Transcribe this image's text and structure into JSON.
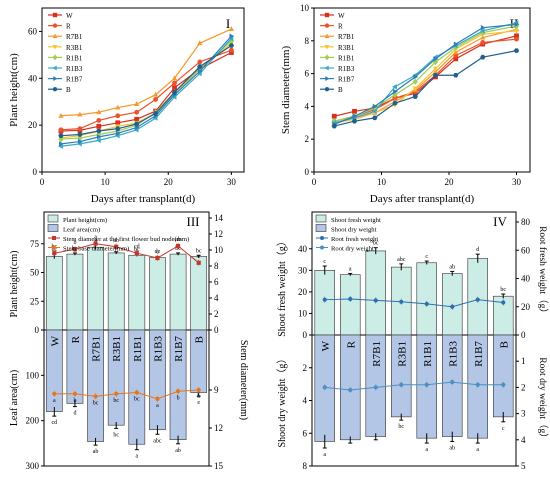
{
  "chart_data": [
    {
      "type": "line",
      "panel_label": "I",
      "title": "",
      "xlabel": "Days after transplant(d)",
      "ylabel": "Plant height(cm)",
      "xlim": [
        0,
        32
      ],
      "ylim": [
        0,
        70
      ],
      "xticks": [
        0,
        10,
        20,
        30
      ],
      "yticks": [
        0,
        20,
        40,
        60
      ],
      "legend_position": "top-left",
      "x": [
        3,
        6,
        9,
        12,
        15,
        18,
        21,
        25,
        30
      ],
      "series": [
        {
          "name": "W",
          "color": "#d7301f",
          "marker": "square",
          "values": [
            17.5,
            17.8,
            19.5,
            21,
            22.5,
            26,
            36,
            44,
            51
          ]
        },
        {
          "name": "R",
          "color": "#e8552a",
          "marker": "circle",
          "values": [
            18,
            18.5,
            22,
            24,
            25.5,
            31,
            38,
            47,
            52
          ]
        },
        {
          "name": "R7B1",
          "color": "#f59a2c",
          "marker": "triangle",
          "values": [
            24,
            24.5,
            25.5,
            27.5,
            29,
            33,
            40,
            55,
            61
          ]
        },
        {
          "name": "R3B1",
          "color": "#f2c43a",
          "marker": "triangle-down",
          "values": [
            14.5,
            15.5,
            17.5,
            19.5,
            21,
            25,
            33,
            44,
            55
          ]
        },
        {
          "name": "R1B1",
          "color": "#9ccf52",
          "marker": "diamond",
          "values": [
            14,
            14.5,
            16,
            17.5,
            20,
            25.5,
            34,
            44,
            56
          ]
        },
        {
          "name": "R1B3",
          "color": "#38a9c8",
          "marker": "triangle-left",
          "values": [
            11,
            12,
            13.5,
            15.5,
            18,
            23,
            32,
            42,
            57
          ]
        },
        {
          "name": "R1B7",
          "color": "#2d7fb8",
          "marker": "triangle-right",
          "values": [
            12,
            13,
            15,
            16.5,
            19,
            24,
            33,
            43,
            58
          ]
        },
        {
          "name": "B",
          "color": "#235f8c",
          "marker": "hexagon",
          "values": [
            15.5,
            16,
            17.5,
            18.5,
            20.5,
            25,
            34,
            45,
            54
          ]
        }
      ]
    },
    {
      "type": "line",
      "panel_label": "II",
      "title": "",
      "xlabel": "Days after transplant(d)",
      "ylabel": "Stem diameter(mm)",
      "xlim": [
        0,
        32
      ],
      "ylim": [
        0,
        10
      ],
      "xticks": [
        0,
        10,
        20,
        30
      ],
      "yticks": [
        0,
        2,
        4,
        6,
        8,
        10
      ],
      "legend_position": "top-left",
      "x": [
        3,
        6,
        9,
        12,
        15,
        18,
        21,
        25,
        30
      ],
      "series": [
        {
          "name": "W",
          "color": "#d7301f",
          "marker": "square",
          "values": [
            3.4,
            3.7,
            3.9,
            4.5,
            4.8,
            5.8,
            6.9,
            7.8,
            8.3
          ]
        },
        {
          "name": "R",
          "color": "#e8552a",
          "marker": "circle",
          "values": [
            3.1,
            3.4,
            3.8,
            4.5,
            4.9,
            5.9,
            7.1,
            7.9,
            8.1
          ]
        },
        {
          "name": "R7B1",
          "color": "#f59a2c",
          "marker": "triangle",
          "values": [
            3.0,
            3.3,
            3.6,
            4.3,
            5.0,
            6.1,
            7.3,
            8.2,
            8.7
          ]
        },
        {
          "name": "R3B1",
          "color": "#f2c43a",
          "marker": "triangle-down",
          "values": [
            3.0,
            3.2,
            3.6,
            4.1,
            5.1,
            6.3,
            7.5,
            8.4,
            8.6
          ]
        },
        {
          "name": "R1B1",
          "color": "#9ccf52",
          "marker": "diamond",
          "values": [
            3.1,
            3.4,
            3.9,
            4.7,
            5.5,
            6.7,
            7.6,
            8.5,
            8.9
          ]
        },
        {
          "name": "R1B3",
          "color": "#38a9c8",
          "marker": "triangle-left",
          "values": [
            3.0,
            3.3,
            3.7,
            5.2,
            5.9,
            7.0,
            7.7,
            8.6,
            9.1
          ]
        },
        {
          "name": "R1B7",
          "color": "#2d7fb8",
          "marker": "triangle-right",
          "values": [
            2.9,
            3.4,
            4.0,
            4.9,
            5.8,
            6.9,
            7.8,
            8.8,
            9.0
          ]
        },
        {
          "name": "B",
          "color": "#235f8c",
          "marker": "hexagon",
          "values": [
            2.8,
            3.1,
            3.3,
            4.2,
            4.6,
            5.9,
            5.9,
            7.0,
            7.4
          ]
        }
      ]
    },
    {
      "type": "bar",
      "panel_label": "III",
      "categories": [
        "W",
        "R",
        "R7B1",
        "R3B1",
        "R1B1",
        "R1B3",
        "R1B7",
        "B"
      ],
      "legend": [
        "Plant height(cm)",
        "Leaf area(cm)",
        "Stem diameter at the first flower bud node(mm)",
        "Stem base diameter(mm)"
      ],
      "legend_position": "top-left",
      "top": {
        "ylabel": "Plant height(cm)",
        "ylim": [
          0,
          80
        ],
        "yticks": [
          0,
          25,
          50,
          75
        ],
        "bar_color": "#ccece6",
        "values": [
          64,
          66,
          72,
          67,
          65,
          63,
          66,
          64
        ],
        "errors": [
          2,
          1,
          2,
          1,
          1,
          1,
          1,
          1
        ],
        "letters": [
          "bc",
          "bc",
          "a",
          "b",
          "bc",
          "c",
          "bc",
          "bc"
        ]
      },
      "bottom": {
        "ylabel": "Leaf area(cm)",
        "ylim": [
          300,
          0
        ],
        "yticks": [
          0,
          100,
          200,
          300
        ],
        "bar_color": "#b3c6e6",
        "values": [
          180,
          162,
          246,
          210,
          252,
          220,
          242,
          138
        ],
        "errors": [
          10,
          7,
          8,
          7,
          12,
          10,
          9,
          8
        ],
        "letters": [
          "cd",
          "d",
          "ab",
          "bc",
          "a",
          "abc",
          "ab",
          "e"
        ]
      },
      "right_axis": {
        "label": "Stem diameter(mm)",
        "top_ticks": [
          0,
          2,
          4,
          6,
          8,
          10,
          12,
          14
        ],
        "bottom_ticks": [
          9,
          12,
          15
        ]
      },
      "lines": [
        {
          "name": "Stem diameter at the first flower bud node(mm)",
          "color": "#c0392b",
          "marker": "square",
          "values": [
            9.6,
            10.1,
            10.8,
            10.4,
            9.6,
            9.0,
            10.5,
            8.4
          ],
          "letters": [
            "bc",
            "b",
            "a",
            "ab",
            "cd",
            "de",
            "ab",
            "e"
          ]
        },
        {
          "name": "Stem base diameter(mm)",
          "color": "#e8741e",
          "marker": "circle",
          "values": [
            10.2,
            10.2,
            10.4,
            10.2,
            10.1,
            10.6,
            10.0,
            9.9
          ],
          "letters": [
            "a",
            "b",
            "bc",
            "bc",
            "bc",
            "a",
            "b",
            "b"
          ]
        }
      ]
    },
    {
      "type": "bar",
      "panel_label": "IV",
      "categories": [
        "W",
        "R",
        "R7B1",
        "R3B1",
        "R1B1",
        "R1B3",
        "R1B7",
        "B"
      ],
      "legend": [
        "Shoot fresh weight",
        "Shoot dry weight",
        "Root fresh weight",
        "Root dry weight"
      ],
      "legend_position": "top-left",
      "top": {
        "ylabel": "Shoot fresh weight（g）",
        "ylim": [
          0,
          45
        ],
        "yticks": [
          0,
          10,
          20,
          30,
          40
        ],
        "bar_color": "#ccece6",
        "values": [
          30,
          28,
          39,
          31.5,
          33.5,
          28.5,
          35.5,
          18
        ],
        "errors": [
          2,
          0.5,
          1.5,
          1.5,
          0.8,
          1,
          2,
          1
        ],
        "letters": [
          "c",
          "a",
          "bc",
          "abc",
          "c",
          "ab",
          "d",
          "bc"
        ]
      },
      "bottom": {
        "ylabel": "Shoot dry weight（g）",
        "ylim": [
          8,
          0
        ],
        "yticks": [
          0,
          2,
          4,
          6,
          8
        ],
        "bar_color": "#b3c6e6",
        "values": [
          6.5,
          6.4,
          6.2,
          5.0,
          6.3,
          6.2,
          6.3,
          5.0
        ],
        "errors": [
          0.4,
          0.2,
          0.2,
          0.2,
          0.3,
          0.3,
          0.3,
          0.3
        ],
        "letters": [
          "a",
          "",
          "",
          "bc",
          "a",
          "ab",
          "a",
          "c"
        ]
      },
      "right_axis": {
        "top_label": "Root fresh weight（g）",
        "bottom_label": "Root dry weight（g）",
        "top_ticks": [
          0,
          20,
          40,
          60,
          80
        ],
        "bottom_ticks": [
          0,
          1,
          2,
          3,
          4,
          5
        ]
      },
      "lines": [
        {
          "name": "Root fresh weight",
          "color": "#2d6fb0",
          "marker": "circle",
          "values": [
            25,
            25.5,
            24.5,
            23.5,
            22,
            20,
            25,
            23
          ]
        },
        {
          "name": "Root dry weight",
          "color": "#4a90c2",
          "marker": "circle",
          "values": [
            2.0,
            2.1,
            2.0,
            1.9,
            1.9,
            1.8,
            1.9,
            1.9
          ]
        }
      ]
    }
  ]
}
